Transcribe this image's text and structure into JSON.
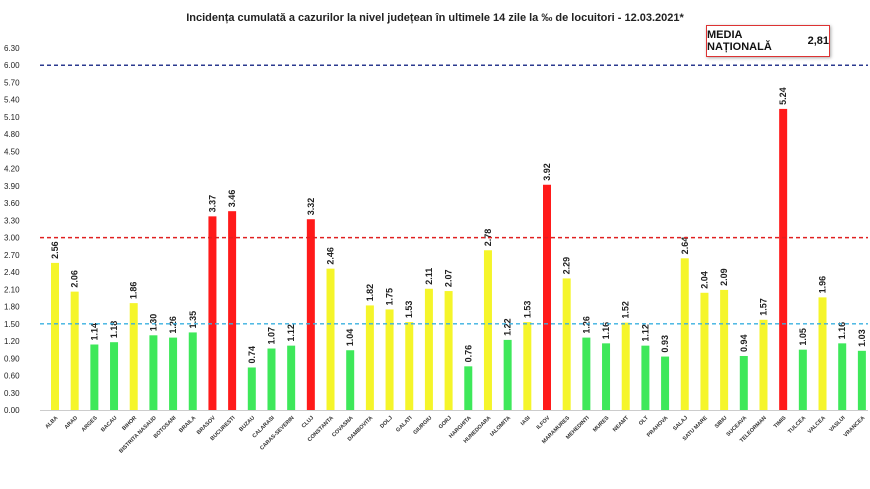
{
  "chart_data": {
    "type": "bar",
    "title": "Incidența cumulată a cazurilor la nivel județean în ultimele 14 zile la ‰ de locuitori - 12.03.2021*",
    "annotation": {
      "label": "MEDIA NAȚIONALĂ",
      "value": "2,81"
    },
    "ylim": [
      0,
      6.3
    ],
    "yticks": [
      "0.00",
      "0.30",
      "0.60",
      "0.90",
      "1.20",
      "1.50",
      "1.80",
      "2.10",
      "2.40",
      "2.70",
      "3.00",
      "3.30",
      "3.60",
      "3.90",
      "4.20",
      "4.50",
      "4.80",
      "5.10",
      "5.40",
      "5.70",
      "6.00",
      "6.30"
    ],
    "grid": false,
    "reference_lines": [
      {
        "value": 6.0,
        "color": "#2b3a8f"
      },
      {
        "value": 3.0,
        "color": "#e02020"
      },
      {
        "value": 1.5,
        "color": "#3ab0e0"
      }
    ],
    "colors": {
      "high": "#ff1a1a",
      "medium": "#f5f52a",
      "low": "#3ee85a"
    },
    "categories": [
      "ALBA",
      "ARAD",
      "ARGES",
      "BACAU",
      "BIHOR",
      "BISTRITA NASAUD",
      "BOTOSANI",
      "BRAILA",
      "BRASOV",
      "BUCURESTI",
      "BUZAU",
      "CALARASI",
      "CARAS-SEVERIN",
      "CLUJ",
      "CONSTANTA",
      "COVASNA",
      "DAMBOVITA",
      "DOLJ",
      "GALATI",
      "GIURGIU",
      "GORJ",
      "HARGHITA",
      "HUNEDOARA",
      "IALOMITA",
      "IASI",
      "ILFOV",
      "MARAMURES",
      "MEHEDINTI",
      "MURES",
      "NEAMT",
      "OLT",
      "PRAHOVA",
      "SALAJ",
      "SATU MARE",
      "SIBIU",
      "SUCEAVA",
      "TELEORMAN",
      "TIMIS",
      "TULCEA",
      "VALCEA",
      "VASLUI",
      "VRANCEA"
    ],
    "values": [
      2.56,
      2.06,
      1.14,
      1.18,
      1.86,
      1.3,
      1.26,
      1.35,
      3.37,
      3.46,
      0.74,
      1.07,
      1.12,
      3.32,
      2.46,
      1.04,
      1.82,
      1.75,
      1.53,
      2.11,
      2.07,
      0.76,
      2.78,
      1.22,
      1.53,
      3.92,
      2.29,
      1.26,
      1.16,
      1.52,
      1.12,
      0.93,
      2.64,
      2.04,
      2.09,
      0.94,
      1.57,
      5.24,
      1.05,
      1.96,
      1.16,
      1.03
    ]
  }
}
